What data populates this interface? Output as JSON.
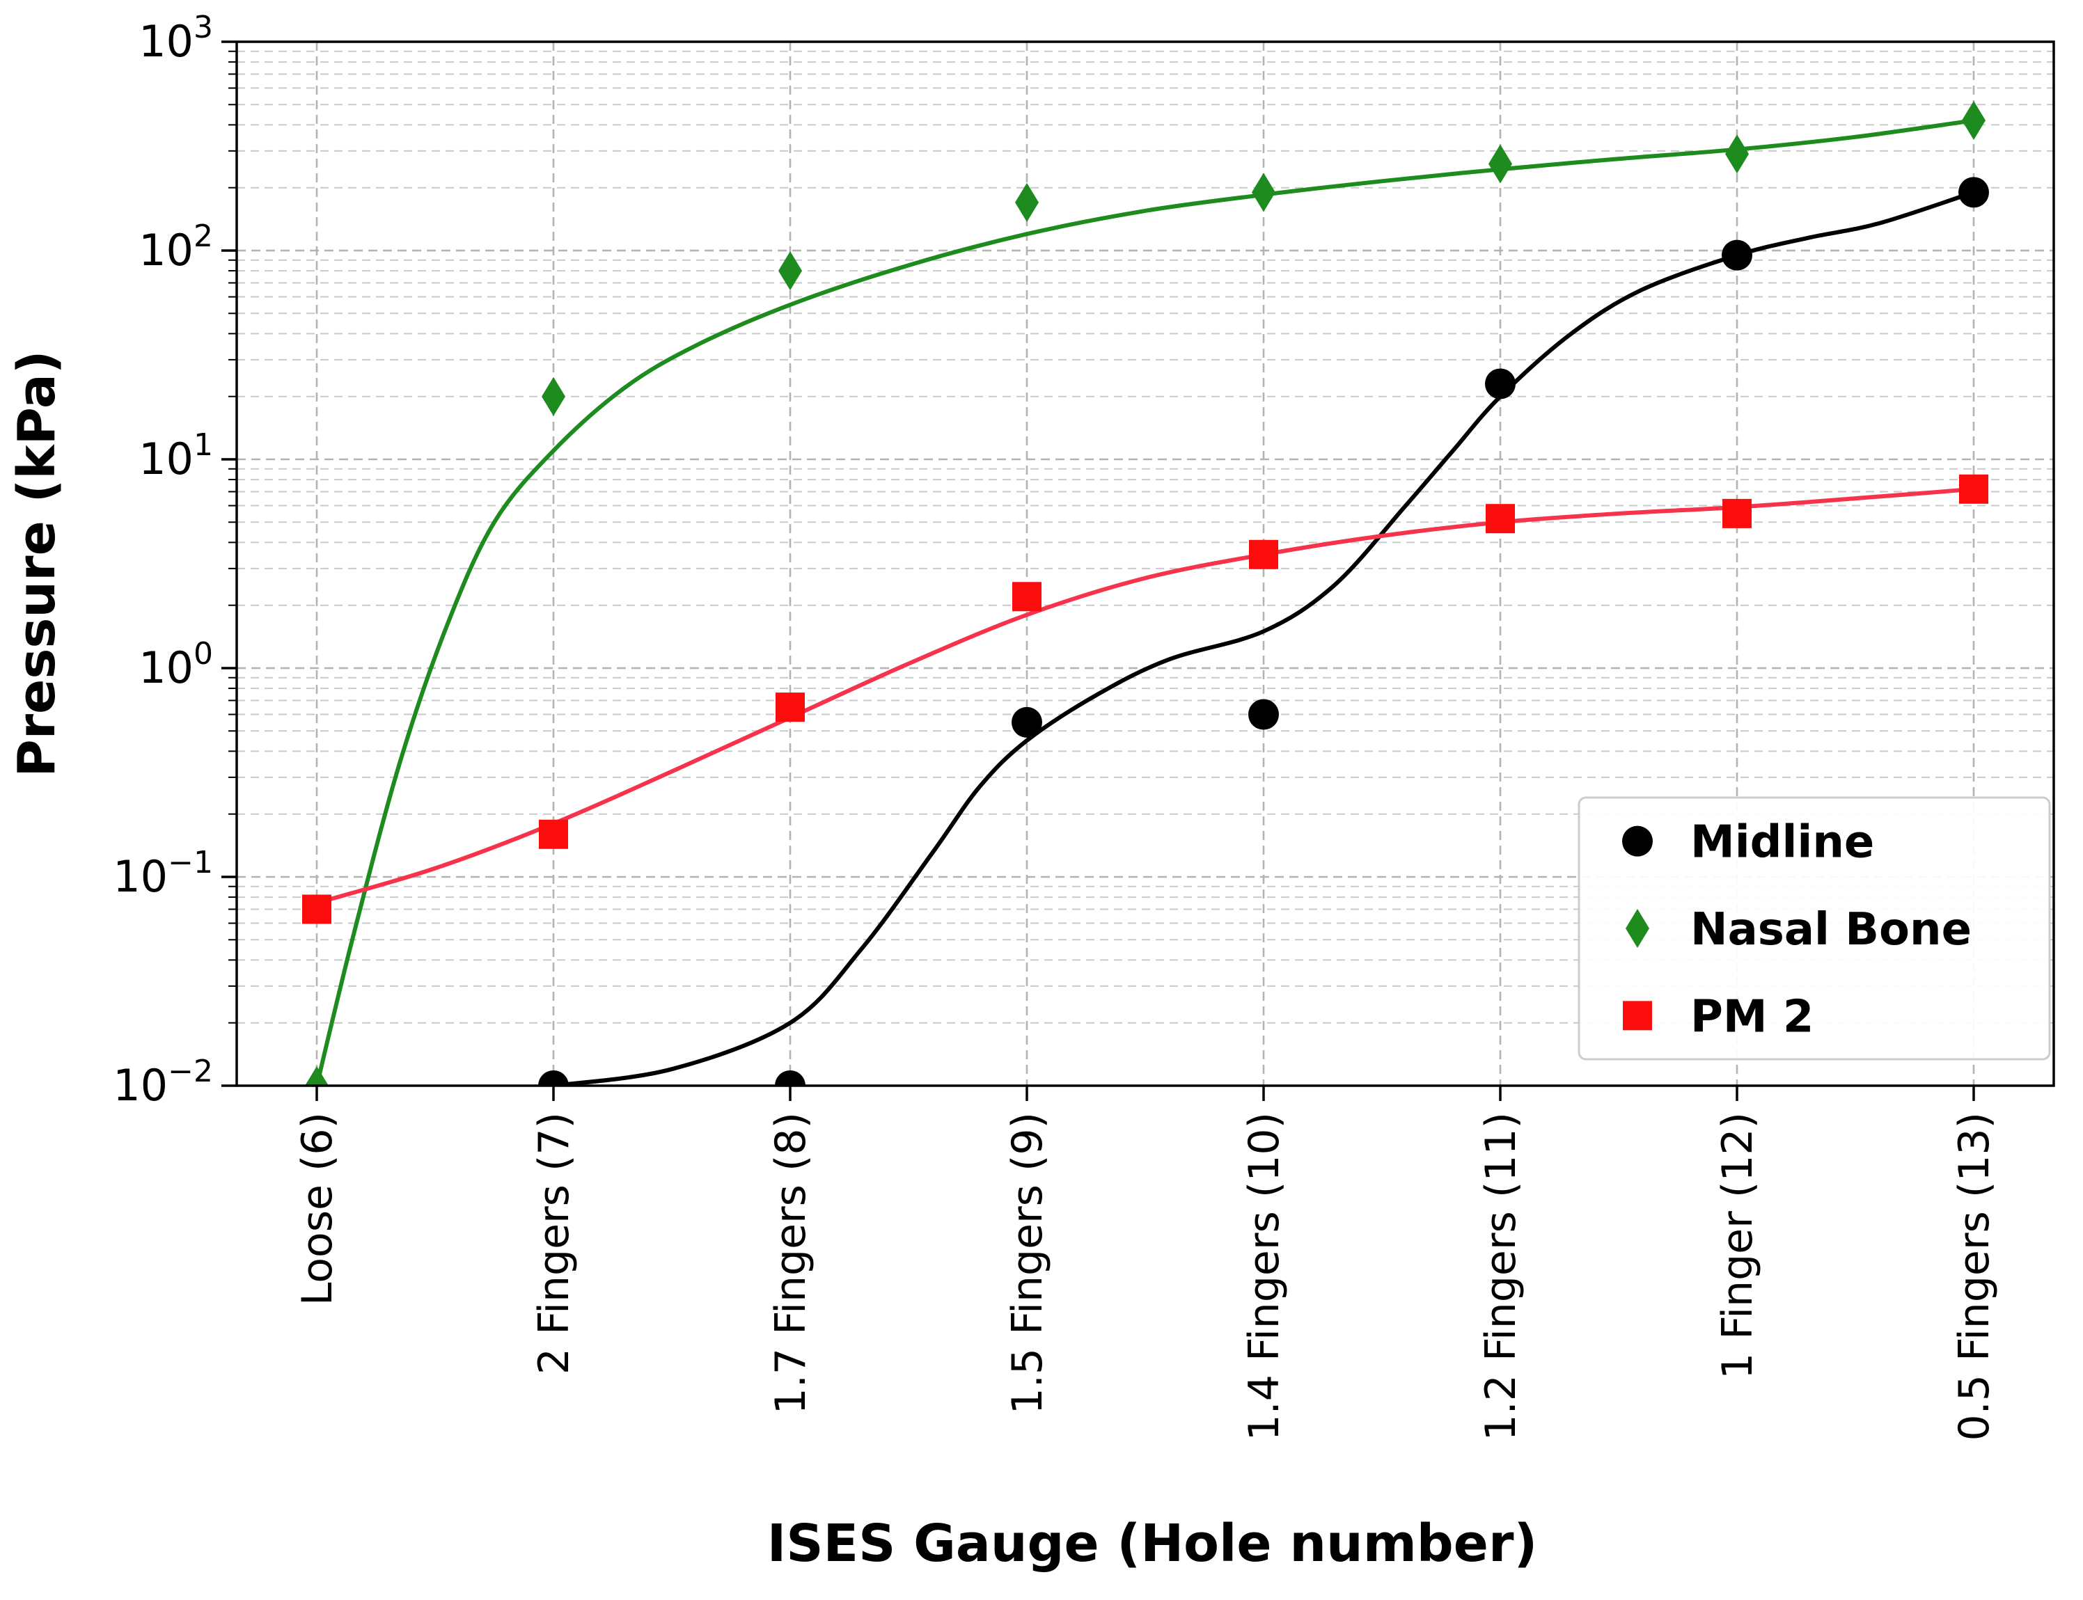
{
  "figure": {
    "background": "#ffffff"
  },
  "chart_data": {
    "type": "scatter",
    "title": "",
    "xlabel": "ISES Gauge (Hole number)",
    "ylabel": "Pressure (kPa)",
    "y_scale": "log",
    "ylim": [
      0.01,
      1000
    ],
    "grid": true,
    "legend_position": "lower right",
    "x_categories": [
      "Loose (6)",
      "2 Fingers (7)",
      "1.7 Fingers (8)",
      "1.5 Fingers (9)",
      "1.4 Fingers (10)",
      "1.2 Fingers (11)",
      "1 Finger (12)",
      "0.5 Fingers (13)"
    ],
    "y_ticks": [
      {
        "value": 1000,
        "base": "10",
        "exp": "3"
      },
      {
        "value": 100,
        "base": "10",
        "exp": "2"
      },
      {
        "value": 10,
        "base": "10",
        "exp": "1"
      },
      {
        "value": 1,
        "base": "10",
        "exp": "0"
      },
      {
        "value": 0.1,
        "base": "10",
        "exp": "−1"
      },
      {
        "value": 0.01,
        "base": "10",
        "exp": "−2"
      }
    ],
    "grid_color_major": "#b3b3b3",
    "grid_color_minor": "#c9c9c9",
    "series": [
      {
        "name": "Midline",
        "marker": "circle",
        "marker_color": "#000000",
        "line_color": "#000000",
        "scatter": [
          null,
          0.01,
          0.01,
          0.55,
          0.6,
          23,
          95,
          190
        ],
        "fit_curve": [
          [
            1,
            0.01
          ],
          [
            1.5,
            0.012
          ],
          [
            2,
            0.02
          ],
          [
            2.3,
            0.045
          ],
          [
            2.6,
            0.13
          ],
          [
            2.8,
            0.27
          ],
          [
            3,
            0.45
          ],
          [
            3.3,
            0.75
          ],
          [
            3.6,
            1.1
          ],
          [
            4,
            1.5
          ],
          [
            4.3,
            2.5
          ],
          [
            4.6,
            6
          ],
          [
            4.8,
            11
          ],
          [
            5,
            20
          ],
          [
            5.3,
            40
          ],
          [
            5.6,
            65
          ],
          [
            6,
            95
          ],
          [
            6.3,
            115
          ],
          [
            6.6,
            135
          ],
          [
            7,
            190
          ]
        ]
      },
      {
        "name": "Nasal Bone",
        "marker": "diamond",
        "marker_color": "#1e8b1e",
        "line_color": "#1e8b1e",
        "scatter": [
          0.01,
          20,
          80,
          170,
          190,
          260,
          290,
          420
        ],
        "fit_curve": [
          [
            0,
            0.01
          ],
          [
            0.15,
            0.05
          ],
          [
            0.35,
            0.35
          ],
          [
            0.55,
            1.6
          ],
          [
            0.75,
            5
          ],
          [
            1,
            11
          ],
          [
            1.3,
            22
          ],
          [
            1.6,
            35
          ],
          [
            2,
            55
          ],
          [
            2.5,
            85
          ],
          [
            3,
            120
          ],
          [
            3.5,
            155
          ],
          [
            4,
            185
          ],
          [
            4.5,
            215
          ],
          [
            5,
            245
          ],
          [
            5.5,
            275
          ],
          [
            6,
            305
          ],
          [
            6.5,
            350
          ],
          [
            7,
            420
          ]
        ]
      },
      {
        "name": "PM 2",
        "marker": "square",
        "marker_color": "#fb0d0d",
        "line_color": "#f7334b",
        "scatter": [
          0.07,
          0.16,
          0.65,
          2.2,
          3.5,
          5.2,
          5.5,
          7.2
        ],
        "fit_curve": [
          [
            0,
            0.075
          ],
          [
            0.5,
            0.11
          ],
          [
            1,
            0.18
          ],
          [
            1.5,
            0.32
          ],
          [
            2,
            0.58
          ],
          [
            2.5,
            1.05
          ],
          [
            3,
            1.8
          ],
          [
            3.5,
            2.7
          ],
          [
            4,
            3.5
          ],
          [
            4.5,
            4.3
          ],
          [
            5,
            5.0
          ],
          [
            5.5,
            5.5
          ],
          [
            6,
            5.9
          ],
          [
            6.5,
            6.5
          ],
          [
            7,
            7.2
          ]
        ]
      }
    ]
  }
}
